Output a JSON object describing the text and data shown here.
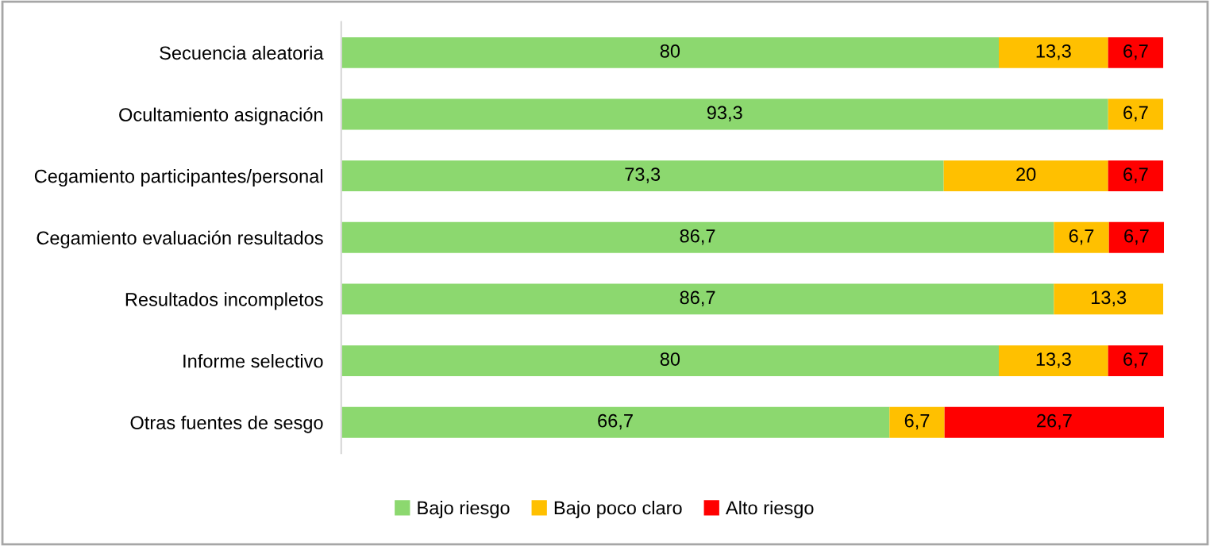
{
  "chart_data": {
    "type": "bar",
    "orientation": "horizontal",
    "stacked": true,
    "categories": [
      "Secuencia aleatoria",
      "Ocultamiento asignación",
      "Cegamiento participantes/personal",
      "Cegamiento evaluación resultados",
      "Resultados incompletos",
      "Informe selectivo",
      "Otras fuentes de sesgo"
    ],
    "series": [
      {
        "name": "Bajo riesgo",
        "color": "#8cd86f",
        "values": [
          80,
          93.3,
          73.3,
          86.7,
          86.7,
          80,
          66.7
        ],
        "value_labels": [
          "80",
          "93,3",
          "73,3",
          "86,7",
          "86,7",
          "80",
          "66,7"
        ]
      },
      {
        "name": "Bajo poco claro",
        "color": "#ffc000",
        "values": [
          13.3,
          6.7,
          20,
          6.7,
          13.3,
          13.3,
          6.7
        ],
        "value_labels": [
          "13,3",
          "6,7",
          "20",
          "6,7",
          "13,3",
          "13,3",
          "6,7"
        ]
      },
      {
        "name": "Alto riesgo",
        "color": "#ff0000",
        "values": [
          6.7,
          null,
          6.7,
          6.7,
          null,
          6.7,
          26.7
        ],
        "value_labels": [
          "6,7",
          null,
          "6,7",
          "6,7",
          null,
          "6,7",
          "26,7"
        ]
      }
    ],
    "legend": "bottom",
    "grid": false,
    "tick_labels": "y"
  }
}
